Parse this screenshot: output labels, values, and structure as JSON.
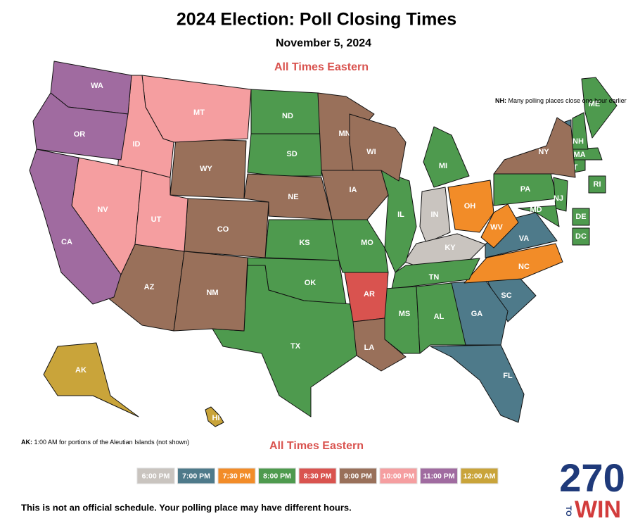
{
  "title": "2024 Election: Poll Closing Times",
  "subtitle": "November 5, 2024",
  "note": "All Times Eastern",
  "nh_note": {
    "label": "NH:",
    "text": "Many polling places close one hour earlier"
  },
  "ak_note": {
    "label": "AK:",
    "text": "1:00 AM for portions of the Aleutian Islands (not shown)"
  },
  "disclaimer": "This is not an official schedule. Your polling place may have different hours.",
  "logo": {
    "number": "270",
    "to": "TO",
    "win": "WIN"
  },
  "legend": [
    {
      "label": "6:00 PM",
      "color": "#c9c4bf",
      "states": [
        "IN",
        "KY"
      ]
    },
    {
      "label": "7:00 PM",
      "color": "#4e7a8a",
      "states": [
        "VT",
        "VA",
        "SC",
        "GA",
        "FL"
      ]
    },
    {
      "label": "7:30 PM",
      "color": "#f28c28",
      "states": [
        "OH",
        "WV",
        "NC"
      ]
    },
    {
      "label": "8:00 PM",
      "color": "#4e9a4e",
      "states": [
        "ND",
        "SD",
        "KS",
        "OK",
        "TX",
        "MO",
        "IL",
        "MI",
        "TN",
        "MS",
        "AL",
        "PA",
        "NJ",
        "MD",
        "DE",
        "DC",
        "CT",
        "MA",
        "RI",
        "NH",
        "ME"
      ]
    },
    {
      "label": "8:30 PM",
      "color": "#d9534f",
      "states": [
        "AR"
      ]
    },
    {
      "label": "9:00 PM",
      "color": "#99705a",
      "states": [
        "WY",
        "CO",
        "AZ",
        "NM",
        "NE",
        "MN",
        "IA",
        "WI",
        "LA",
        "NY"
      ]
    },
    {
      "label": "10:00 PM",
      "color": "#f59ea0",
      "states": [
        "MT",
        "ID",
        "NV",
        "UT"
      ]
    },
    {
      "label": "11:00 PM",
      "color": "#a06ba0",
      "states": [
        "WA",
        "OR",
        "CA"
      ]
    },
    {
      "label": "12:00 AM",
      "color": "#c9a43a",
      "states": [
        "AK",
        "HI"
      ]
    }
  ]
}
